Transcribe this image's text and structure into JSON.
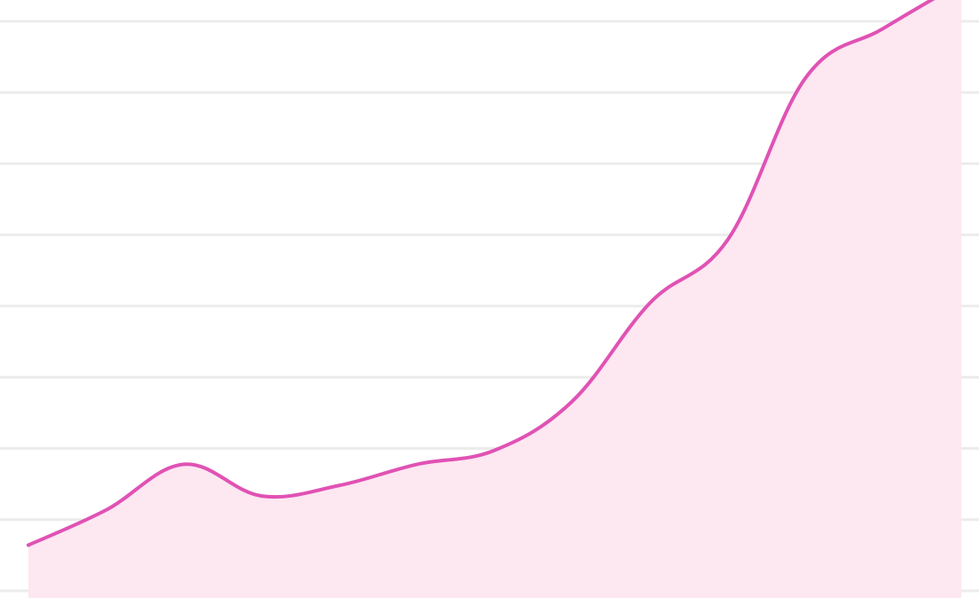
{
  "chart_data": {
    "type": "area",
    "x": [
      0,
      1,
      2,
      3,
      4,
      5,
      6,
      7,
      8,
      9,
      10,
      11,
      12
    ],
    "values": [
      0.75,
      1.25,
      1.9,
      1.45,
      1.6,
      1.9,
      2.1,
      2.8,
      4.2,
      5.1,
      7.4,
      8.1,
      8.75
    ],
    "ylim": [
      0,
      8.2
    ],
    "grid": true,
    "colors": {
      "line": "#e052b4",
      "fill": "#fde7f1",
      "grid": "#ececec"
    }
  }
}
